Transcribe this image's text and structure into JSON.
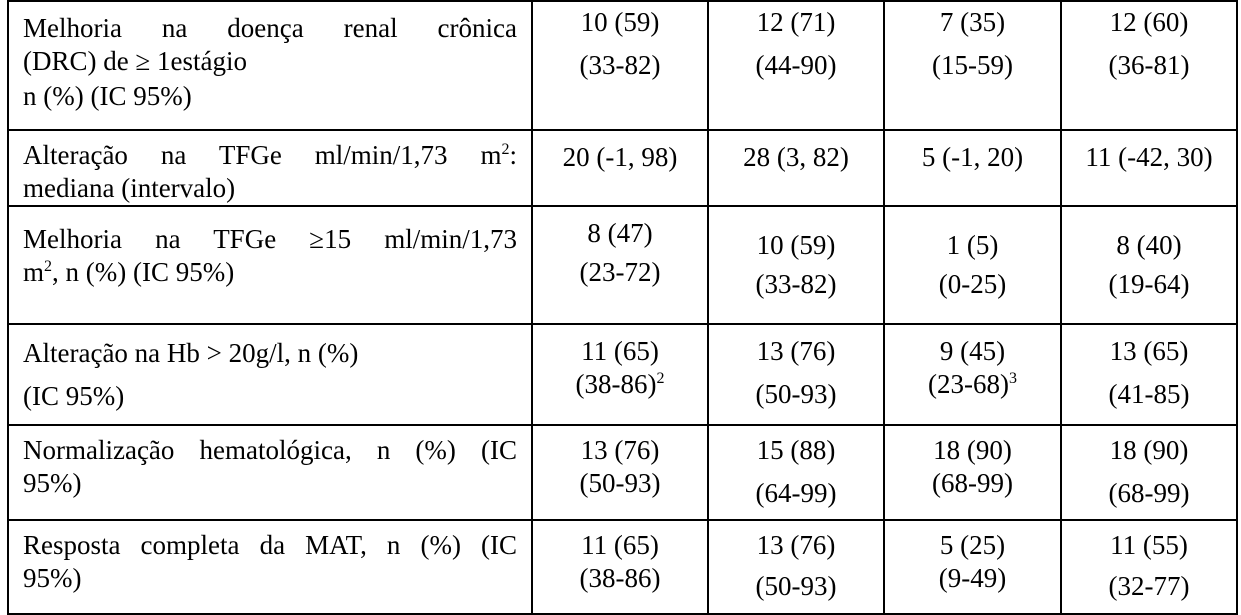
{
  "rows": [
    {
      "label_lines": [
        "Melhoria na doença renal crônica",
        "(DRC) de ≥ 1estágio",
        "n (%) (IC 95%)"
      ],
      "cells": [
        {
          "line1": "10 (59)",
          "line2": "(33-82)"
        },
        {
          "line1": "12 (71)",
          "line2": "(44-90)"
        },
        {
          "line1": "7 (35)",
          "line2": "(15-59)"
        },
        {
          "line1": "12 (60)",
          "line2": "(36-81)"
        }
      ]
    },
    {
      "label_a": "Alteração na TFGe ml/min/1,73 m",
      "label_a_sup": "2",
      "label_a_end": ":",
      "label_b": "mediana (intervalo)",
      "cells": [
        "20 (-1, 98)",
        "28 (3, 82)",
        "5 (-1, 20)",
        "11 (-42, 30)"
      ]
    },
    {
      "label_a": "Melhoria na TFGe ≥15 ml/min/1,73",
      "label_b_pre": "m",
      "label_b_sup": "2",
      "label_b_post": ", n (%) (IC 95%)",
      "cells": [
        {
          "line1": "8 (47)",
          "line2": "(23-72)"
        },
        {
          "line1": "10 (59)",
          "line2": "(33-82)"
        },
        {
          "line1": "1 (5)",
          "line2": "(0-25)"
        },
        {
          "line1": "8 (40)",
          "line2": "(19-64)"
        }
      ]
    },
    {
      "label_a": "Alteração na Hb > 20g/l, n (%)",
      "label_b": "(IC 95%)",
      "cells": [
        {
          "line1": "11 (65)",
          "line2": "(38-86)",
          "sup": "2"
        },
        {
          "line1": "13 (76)",
          "line2": "(50-93)",
          "sup": ""
        },
        {
          "line1": "9 (45)",
          "line2": "(23-68)",
          "sup": "3"
        },
        {
          "line1": "13 (65)",
          "line2": "(41-85)",
          "sup": ""
        }
      ]
    },
    {
      "label_a": "Normalização hematológica, n (%) (IC",
      "label_b": "95%)",
      "cells": [
        {
          "line1": "13 (76)",
          "line2": "(50-93)"
        },
        {
          "line1": "15 (88)",
          "line2": "(64-99)"
        },
        {
          "line1": "18 (90)",
          "line2": "(68-99)"
        },
        {
          "line1": "18 (90)",
          "line2": "(68-99)"
        }
      ]
    },
    {
      "label_a": "Resposta completa da MAT, n (%) (IC",
      "label_b": "95%)",
      "cells": [
        {
          "line1": "11 (65)",
          "line2": "(38-86)"
        },
        {
          "line1": "13 (76)",
          "line2": "(50-93)"
        },
        {
          "line1": "5 (25)",
          "line2": "(9-49)"
        },
        {
          "line1": "11 (55)",
          "line2": "(32-77)"
        }
      ]
    }
  ]
}
